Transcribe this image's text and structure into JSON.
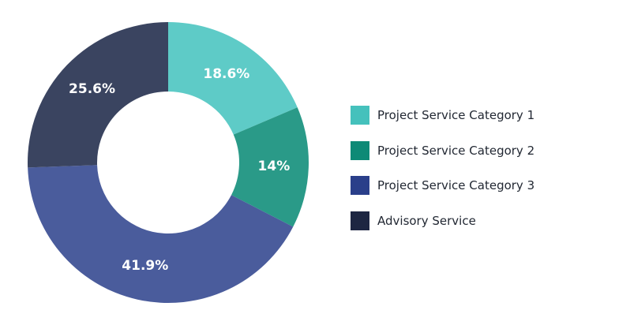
{
  "chart_data": {
    "type": "pie",
    "variant": "donut",
    "title": "",
    "legend_position": "right",
    "slices": [
      {
        "label": "Project Service Category 1",
        "value": 18.6,
        "display": "18.6%",
        "color": "#5ecbc7",
        "legend_color": "#45c1bc"
      },
      {
        "label": "Project Service Category 2",
        "value": 14,
        "display": "14%",
        "color": "#2a9a88",
        "legend_color": "#0e8a76"
      },
      {
        "label": "Project Service Category 3",
        "value": 41.9,
        "display": "41.9%",
        "color": "#4a5c9c",
        "legend_color": "#2a3f8a"
      },
      {
        "label": "Advisory Service",
        "value": 25.6,
        "display": "25.6%",
        "color": "#3a4460",
        "legend_color": "#1d2642"
      }
    ]
  }
}
